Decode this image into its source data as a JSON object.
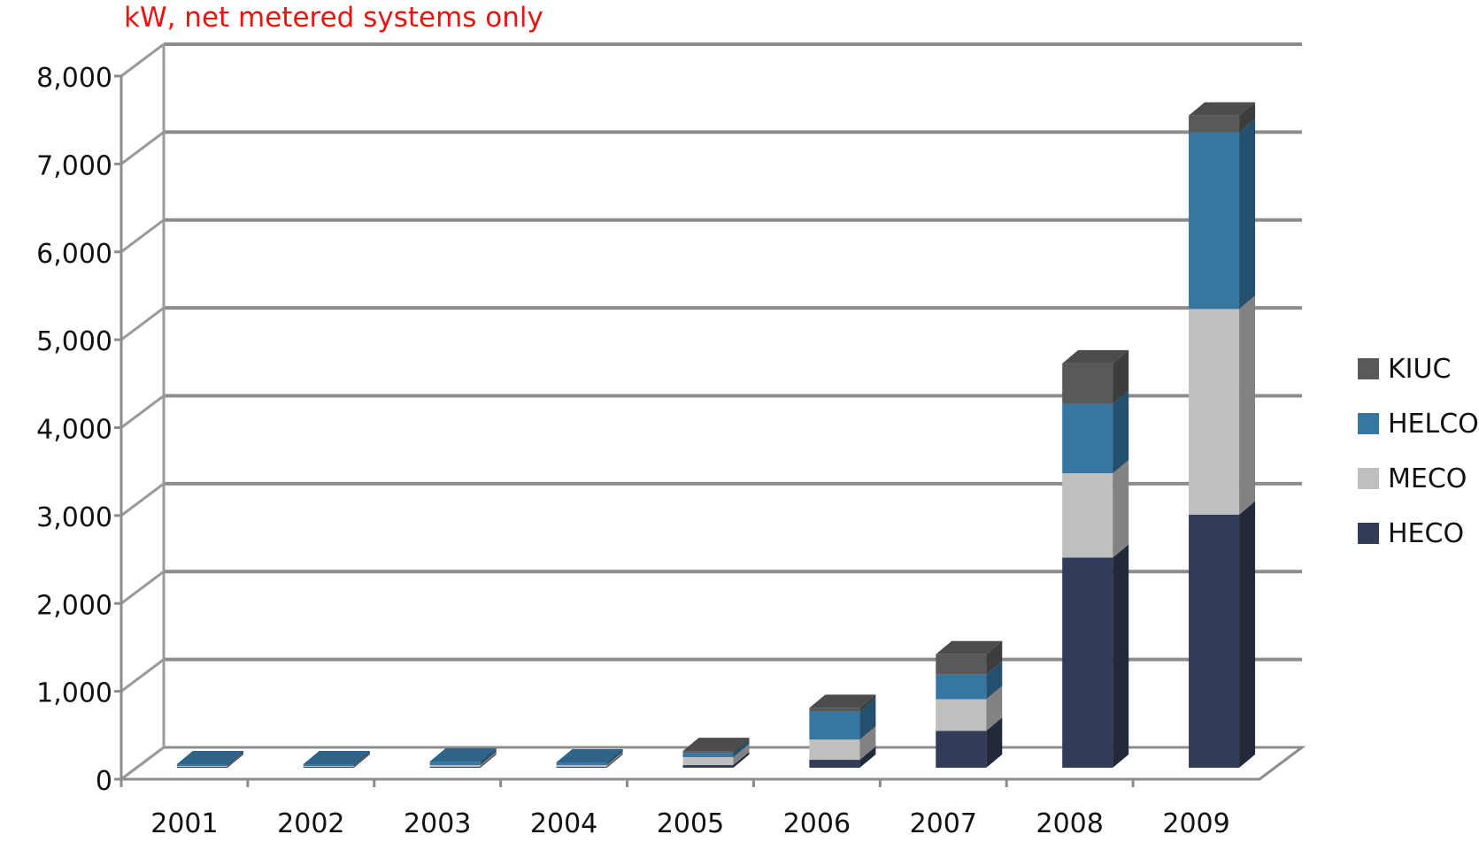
{
  "chart_data": {
    "type": "bar",
    "stacked": true,
    "three_d": true,
    "unit_label": "kW, net metered systems only",
    "categories": [
      "2001",
      "2002",
      "2003",
      "2004",
      "2005",
      "2006",
      "2007",
      "2008",
      "2009"
    ],
    "series": [
      {
        "name": "HECO",
        "color": "#323c56",
        "values": [
          10,
          10,
          10,
          10,
          30,
          90,
          420,
          2390,
          2880
        ]
      },
      {
        "name": "MECO",
        "color": "#bfbfbf",
        "values": [
          10,
          10,
          20,
          20,
          90,
          230,
          360,
          960,
          2340
        ]
      },
      {
        "name": "HELCO",
        "color": "#3776a0",
        "values": [
          20,
          20,
          40,
          30,
          50,
          320,
          280,
          790,
          2010
        ]
      },
      {
        "name": "KIUC",
        "color": "#595959",
        "values": [
          0,
          0,
          0,
          0,
          20,
          40,
          230,
          460,
          190
        ]
      }
    ],
    "ylim": [
      0,
      8000
    ],
    "yticks": [
      "0",
      "1,000",
      "2,000",
      "3,000",
      "4,000",
      "5,000",
      "6,000",
      "7,000",
      "8,000"
    ],
    "grid": true,
    "legend_position": "right"
  }
}
